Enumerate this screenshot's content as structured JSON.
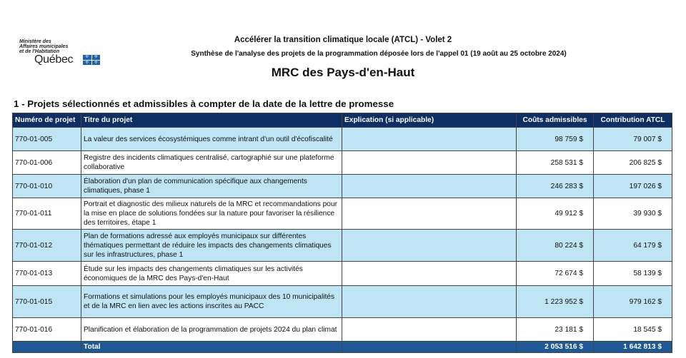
{
  "logo": {
    "ministry": [
      "Ministère des",
      "Affaires municipales",
      "et de l'Habitation"
    ],
    "name": "Québec"
  },
  "header": {
    "title": "Accélérer la transition climatique locale (ATCL) - Volet 2",
    "subtitle": "Synthèse de l'analyse des projets de la programmation déposée lors de l'appel 01 (19 août au 25 octobre 2024)",
    "mrc": "MRC des Pays-d'en-Haut"
  },
  "section": {
    "title": "1 - Projets sélectionnés et admissibles à compter de la date de la lettre de promesse"
  },
  "table": {
    "columns": [
      "Numéro de projet",
      "Titre du projet",
      "Explication (si applicable)",
      "Coûts admissibles",
      "Contribution ATCL"
    ],
    "rows": [
      {
        "num": "770-01-005",
        "title": "La valeur des services écosystémiques comme intrant d'un outil d'écofiscalité",
        "explication": "",
        "couts": "98 759  $",
        "contribution": "79 007  $"
      },
      {
        "num": "770-01-006",
        "title": "Registre des incidents climatiques centralisé, cartographié sur une plateforme collaborative",
        "explication": "",
        "couts": "258 531  $",
        "contribution": "206 825  $"
      },
      {
        "num": "770-01-010",
        "title": "Élaboration d'un plan de communication spécifique aux changements climatiques, phase 1",
        "explication": "",
        "couts": "246 283  $",
        "contribution": "197 026  $"
      },
      {
        "num": "770-01-011",
        "title": "Portrait et diagnostic des milieux naturels de la MRC et recommandations pour la mise en place de solutions fondées sur la nature pour favoriser la résilience des territoires, étape 1",
        "explication": "",
        "couts": "49 912  $",
        "contribution": "39 930  $"
      },
      {
        "num": "770-01-012",
        "title": "Plan de formations adressé aux employés municipaux sur différentes thématiques permettant de réduire les impacts des changements climatiques sur les infrastructures, phase 1",
        "explication": "",
        "couts": "80 224  $",
        "contribution": "64 179  $"
      },
      {
        "num": "770-01-013",
        "title": "Étude sur les impacts des changements climatiques sur les activités économiques de la MRC des Pays-d'en-Haut",
        "explication": "",
        "couts": "72 674  $",
        "contribution": "58 139  $"
      },
      {
        "num": "770-01-015",
        "title": "Formations et simulations pour les employés municipaux des 10 municipalités et de la MRC en lien avec les actions inscrites au PACC",
        "explication": "",
        "couts": "1 223 952  $",
        "contribution": "979 162  $"
      },
      {
        "num": "770-01-016",
        "title": "Planification et élaboration de la programmation de projets 2024 du plan climat",
        "explication": "",
        "couts": "23 181  $",
        "contribution": "18 545  $"
      }
    ],
    "total": {
      "label": "Total",
      "couts": "2 053 516  $",
      "contribution": "1 642 813  $"
    }
  },
  "colors": {
    "header": "#0e2f66",
    "total": "#1f5897",
    "alt_row": "#bfe5f4"
  }
}
